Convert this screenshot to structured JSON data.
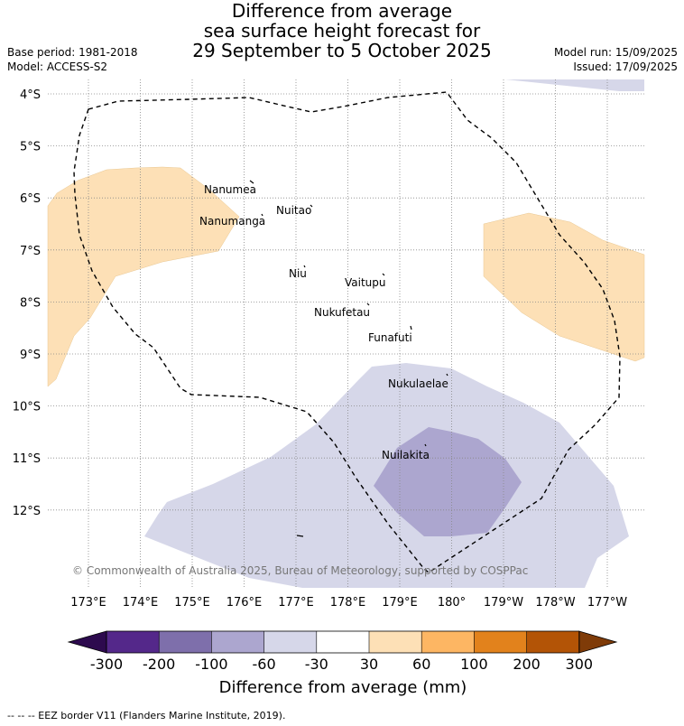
{
  "title": {
    "line1": "Difference from average",
    "line2": "sea surface height forecast for",
    "line3": "29 September to 5 October 2025"
  },
  "meta": {
    "base_period": "Base period: 1981-2018",
    "model": "Model: ACCESS-S2",
    "model_run": "Model run: 15/09/2025",
    "issued": "Issued: 17/09/2025"
  },
  "map": {
    "lon_labels": [
      "173°E",
      "174°E",
      "175°E",
      "176°E",
      "177°E",
      "178°E",
      "179°E",
      "180°",
      "179°W",
      "178°W",
      "177°W"
    ],
    "lat_labels": [
      "4°S",
      "5°S",
      "6°S",
      "7°S",
      "8°S",
      "9°S",
      "10°S",
      "11°S",
      "12°S"
    ],
    "islands": [
      {
        "name": "Nanumea"
      },
      {
        "name": "Nuitao"
      },
      {
        "name": "Nanumanga"
      },
      {
        "name": "Niu"
      },
      {
        "name": "Vaitupu"
      },
      {
        "name": "Nukufetau"
      },
      {
        "name": "Funafuti"
      },
      {
        "name": "Nukulaelae"
      },
      {
        "name": "Nuilakita"
      }
    ],
    "copyright": "© Commonwealth of Australia 2025, Bureau of Meteorology, supported by COSPPac"
  },
  "colorbar": {
    "ticks": [
      "-300",
      "-200",
      "-100",
      "-60",
      "-30",
      "30",
      "60",
      "100",
      "200",
      "300"
    ],
    "colors": [
      "#2d0a4e",
      "#54288a",
      "#7e6fab",
      "#aca6cf",
      "#d6d7e9",
      "#ffffff",
      "#fde0b6",
      "#fdb663",
      "#e2821c",
      "#b35406",
      "#7f3b08"
    ],
    "label": "Difference from average (mm)"
  },
  "footnote": "--  --  -- EEZ border V11 (Flanders Marine Institute, 2019)."
}
